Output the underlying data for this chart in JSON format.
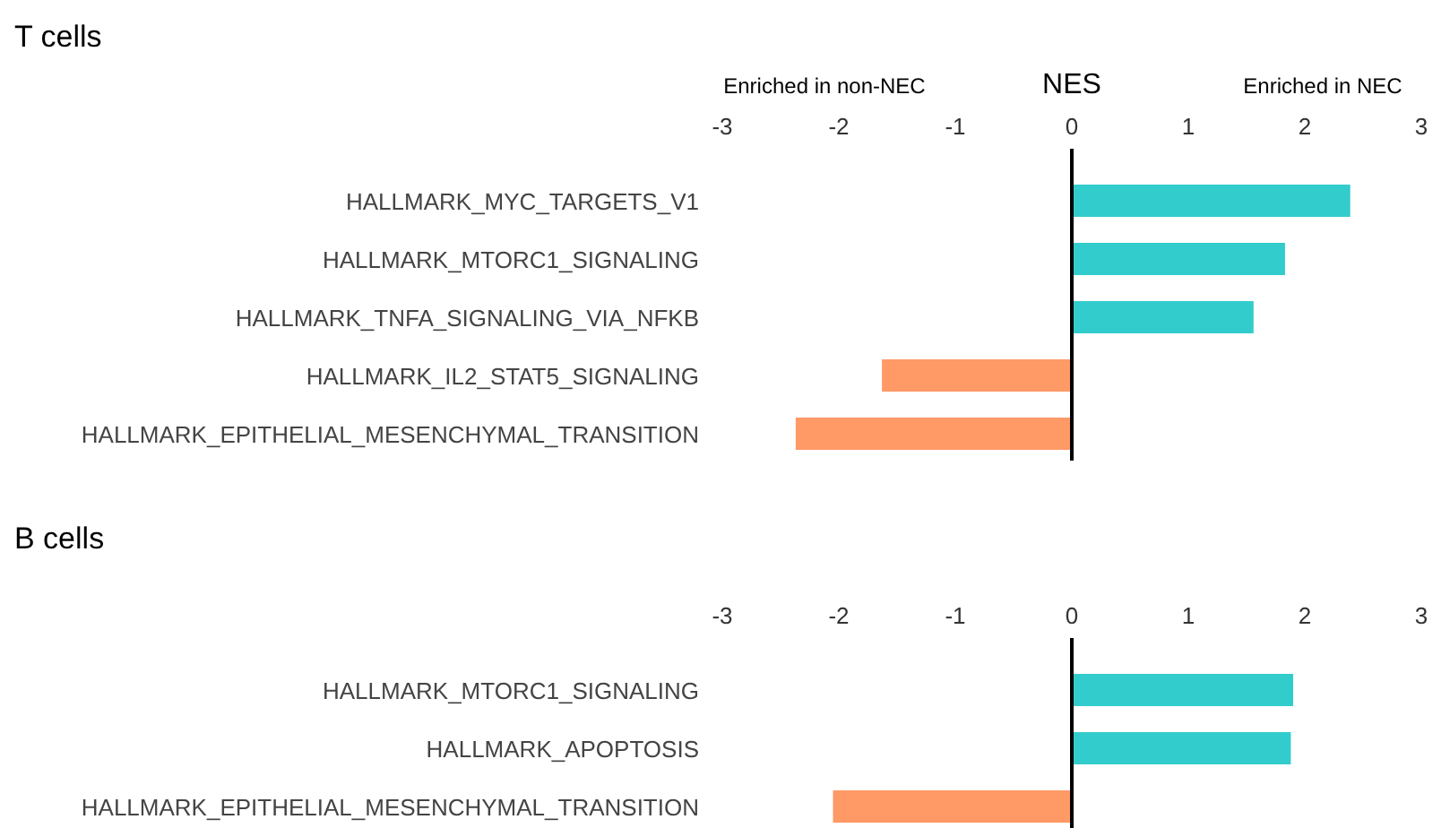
{
  "chart_data": [
    {
      "type": "bar",
      "orientation": "horizontal",
      "title": "T cells",
      "xlabel": "NES",
      "annotations": [
        "Enriched in non-NEC",
        "Enriched in NEC"
      ],
      "categories": [
        "HALLMARK_MYC_TARGETS_V1",
        "HALLMARK_MTORC1_SIGNALING",
        "HALLMARK_TNFA_SIGNALING_VIA_NFKB",
        "HALLMARK_IL2_STAT5_SIGNALING",
        "HALLMARK_EPITHELIAL_MESENCHYMAL_TRANSITION"
      ],
      "values": [
        2.39,
        1.83,
        1.56,
        -1.63,
        -2.37
      ],
      "colors": [
        "#33cccc",
        "#33cccc",
        "#33cccc",
        "#ff9966",
        "#ff9966"
      ],
      "xlim": [
        -3,
        3
      ],
      "xticks": [
        -3,
        -2,
        -1,
        0,
        1,
        2,
        3
      ],
      "ref_lines": [
        {
          "axis": "x",
          "value": 0,
          "color": "#000000"
        }
      ]
    },
    {
      "type": "bar",
      "orientation": "horizontal",
      "title": "B cells",
      "categories": [
        "HALLMARK_MTORC1_SIGNALING",
        "HALLMARK_APOPTOSIS",
        "HALLMARK_EPITHELIAL_MESENCHYMAL_TRANSITION"
      ],
      "values": [
        1.9,
        1.88,
        -2.05
      ],
      "colors": [
        "#33cccc",
        "#33cccc",
        "#ff9966"
      ],
      "xlim": [
        -3,
        3
      ],
      "xticks": [
        -3,
        -2,
        -1,
        0,
        1,
        2,
        3
      ],
      "ref_lines": [
        {
          "axis": "x",
          "value": 0,
          "color": "#000000"
        }
      ]
    }
  ]
}
